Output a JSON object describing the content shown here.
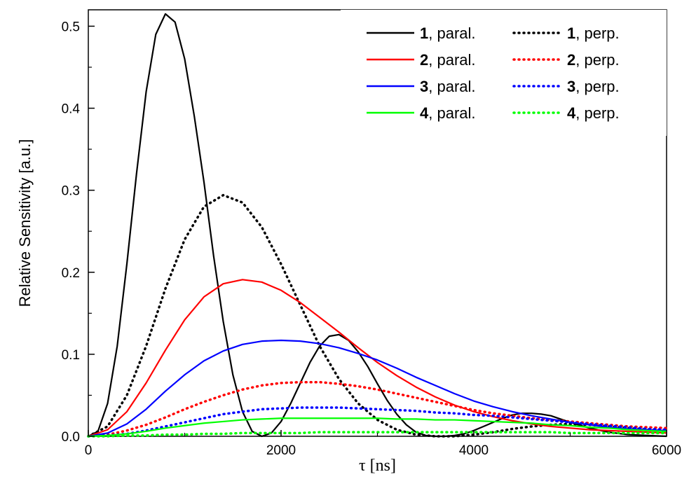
{
  "chart_data": {
    "type": "line",
    "xlabel": "τ [ns]",
    "ylabel": "Relative Sensitivity [a.u.]",
    "xlim": [
      0,
      6000
    ],
    "ylim": [
      0,
      0.52
    ],
    "x_ticks": [
      0,
      2000,
      4000,
      6000
    ],
    "x_tick_labels": [
      "0",
      "2000",
      "4000",
      "6000"
    ],
    "y_ticks": [
      0.0,
      0.1,
      0.2,
      0.3,
      0.4,
      0.5
    ],
    "y_tick_labels": [
      "0.0",
      "0.1",
      "0.2",
      "0.3",
      "0.4",
      "0.5"
    ],
    "grid": false,
    "legend_position": "top-right",
    "series": [
      {
        "name": "paral.",
        "number": "1",
        "color": "#000000",
        "style": "solid",
        "x": [
          0,
          100,
          200,
          300,
          400,
          500,
          600,
          700,
          800,
          900,
          1000,
          1100,
          1200,
          1300,
          1400,
          1500,
          1600,
          1700,
          1800,
          1900,
          2000,
          2100,
          2200,
          2300,
          2400,
          2500,
          2600,
          2700,
          2800,
          2900,
          3000,
          3100,
          3200,
          3300,
          3400,
          3500,
          3600,
          3700,
          3800,
          3900,
          4000,
          4100,
          4200,
          4300,
          4400,
          4500,
          4600,
          4700,
          4800,
          4900,
          5000,
          5200,
          5400,
          5600,
          5800,
          6000
        ],
        "y": [
          0,
          0.006,
          0.04,
          0.11,
          0.21,
          0.32,
          0.42,
          0.49,
          0.515,
          0.505,
          0.46,
          0.39,
          0.31,
          0.22,
          0.14,
          0.075,
          0.03,
          0.006,
          0.0,
          0.004,
          0.018,
          0.04,
          0.065,
          0.09,
          0.11,
          0.122,
          0.124,
          0.117,
          0.103,
          0.085,
          0.064,
          0.044,
          0.027,
          0.014,
          0.005,
          0.001,
          0.0,
          0.0,
          0.001,
          0.003,
          0.007,
          0.012,
          0.017,
          0.022,
          0.026,
          0.028,
          0.028,
          0.027,
          0.025,
          0.021,
          0.017,
          0.01,
          0.005,
          0.002,
          0.001,
          0.0
        ]
      },
      {
        "name": "perp.",
        "number": "1",
        "color": "#000000",
        "style": "dotted",
        "x": [
          0,
          200,
          400,
          600,
          800,
          1000,
          1200,
          1400,
          1600,
          1800,
          2000,
          2200,
          2400,
          2600,
          2800,
          3000,
          3200,
          3400,
          3600,
          3800,
          4000,
          4200,
          4400,
          4600,
          4800,
          5000,
          5200,
          5400,
          5600,
          5800,
          6000
        ],
        "y": [
          0,
          0.012,
          0.05,
          0.11,
          0.18,
          0.24,
          0.28,
          0.294,
          0.285,
          0.255,
          0.21,
          0.16,
          0.11,
          0.07,
          0.04,
          0.02,
          0.008,
          0.002,
          0.0,
          0.0,
          0.002,
          0.005,
          0.009,
          0.012,
          0.014,
          0.015,
          0.014,
          0.012,
          0.01,
          0.008,
          0.006
        ]
      },
      {
        "name": "paral.",
        "number": "2",
        "color": "#ff0000",
        "style": "solid",
        "x": [
          0,
          200,
          400,
          600,
          800,
          1000,
          1200,
          1400,
          1600,
          1800,
          2000,
          2200,
          2400,
          2600,
          2800,
          3000,
          3200,
          3400,
          3600,
          3800,
          4000,
          4200,
          4400,
          4600,
          4800,
          5000,
          5200,
          5400,
          5600,
          5800,
          6000
        ],
        "y": [
          0,
          0.008,
          0.03,
          0.065,
          0.105,
          0.142,
          0.17,
          0.186,
          0.191,
          0.188,
          0.178,
          0.163,
          0.145,
          0.127,
          0.108,
          0.09,
          0.074,
          0.06,
          0.048,
          0.038,
          0.03,
          0.024,
          0.019,
          0.015,
          0.012,
          0.01,
          0.008,
          0.007,
          0.006,
          0.005,
          0.004
        ]
      },
      {
        "name": "perp.",
        "number": "2",
        "color": "#ff0000",
        "style": "dotted",
        "x": [
          0,
          200,
          400,
          600,
          800,
          1000,
          1200,
          1400,
          1600,
          1800,
          2000,
          2200,
          2400,
          2600,
          2800,
          3000,
          3200,
          3400,
          3600,
          3800,
          4000,
          4200,
          4400,
          4600,
          4800,
          5000,
          5200,
          5400,
          5600,
          5800,
          6000
        ],
        "y": [
          0,
          0.002,
          0.007,
          0.014,
          0.023,
          0.033,
          0.042,
          0.05,
          0.057,
          0.062,
          0.065,
          0.066,
          0.066,
          0.064,
          0.061,
          0.057,
          0.052,
          0.047,
          0.042,
          0.037,
          0.032,
          0.028,
          0.025,
          0.022,
          0.02,
          0.018,
          0.016,
          0.014,
          0.012,
          0.011,
          0.01
        ]
      },
      {
        "name": "paral.",
        "number": "3",
        "color": "#0000ff",
        "style": "solid",
        "x": [
          0,
          200,
          400,
          600,
          800,
          1000,
          1200,
          1400,
          1600,
          1800,
          2000,
          2200,
          2400,
          2600,
          2800,
          3000,
          3200,
          3400,
          3600,
          3800,
          4000,
          4200,
          4400,
          4600,
          4800,
          5000,
          5200,
          5400,
          5600,
          5800,
          6000
        ],
        "y": [
          0,
          0.004,
          0.015,
          0.033,
          0.055,
          0.075,
          0.092,
          0.104,
          0.112,
          0.116,
          0.117,
          0.116,
          0.113,
          0.108,
          0.101,
          0.093,
          0.083,
          0.072,
          0.062,
          0.052,
          0.043,
          0.036,
          0.03,
          0.025,
          0.021,
          0.017,
          0.014,
          0.011,
          0.009,
          0.008,
          0.007
        ]
      },
      {
        "name": "perp.",
        "number": "3",
        "color": "#0000ff",
        "style": "dotted",
        "x": [
          0,
          200,
          400,
          600,
          800,
          1000,
          1200,
          1400,
          1600,
          1800,
          2000,
          2200,
          2400,
          2600,
          2800,
          3000,
          3200,
          3400,
          3600,
          3800,
          4000,
          4200,
          4400,
          4600,
          4800,
          5000,
          5200,
          5400,
          5600,
          5800,
          6000
        ],
        "y": [
          0,
          0.001,
          0.003,
          0.007,
          0.012,
          0.017,
          0.022,
          0.027,
          0.03,
          0.033,
          0.034,
          0.035,
          0.035,
          0.035,
          0.034,
          0.033,
          0.032,
          0.031,
          0.029,
          0.028,
          0.026,
          0.025,
          0.023,
          0.021,
          0.019,
          0.017,
          0.015,
          0.013,
          0.011,
          0.009,
          0.008
        ]
      },
      {
        "name": "paral.",
        "number": "4",
        "color": "#00ff00",
        "style": "solid",
        "x": [
          0,
          200,
          400,
          600,
          800,
          1000,
          1200,
          1400,
          1600,
          1800,
          2000,
          2200,
          2400,
          2600,
          2800,
          3000,
          3200,
          3400,
          3600,
          3800,
          4000,
          4200,
          4400,
          4600,
          4800,
          5000,
          5200,
          5400,
          5600,
          5800,
          6000
        ],
        "y": [
          0,
          0.001,
          0.003,
          0.006,
          0.01,
          0.013,
          0.016,
          0.018,
          0.02,
          0.021,
          0.022,
          0.022,
          0.022,
          0.022,
          0.022,
          0.022,
          0.021,
          0.021,
          0.02,
          0.02,
          0.019,
          0.018,
          0.017,
          0.016,
          0.014,
          0.013,
          0.011,
          0.01,
          0.008,
          0.007,
          0.006
        ]
      },
      {
        "name": "perp.",
        "number": "4",
        "color": "#00ff00",
        "style": "dotted",
        "x": [
          0,
          200,
          400,
          600,
          800,
          1000,
          1200,
          1400,
          1600,
          1800,
          2000,
          2200,
          2400,
          2600,
          2800,
          3000,
          3200,
          3400,
          3600,
          3800,
          4000,
          4200,
          4400,
          4600,
          4800,
          5000,
          5200,
          5400,
          5600,
          5800,
          6000
        ],
        "y": [
          0,
          0.0,
          0.001,
          0.001,
          0.002,
          0.002,
          0.003,
          0.003,
          0.004,
          0.004,
          0.004,
          0.004,
          0.005,
          0.005,
          0.005,
          0.005,
          0.005,
          0.005,
          0.005,
          0.005,
          0.005,
          0.005,
          0.005,
          0.005,
          0.005,
          0.004,
          0.004,
          0.004,
          0.004,
          0.004,
          0.004
        ]
      }
    ]
  }
}
